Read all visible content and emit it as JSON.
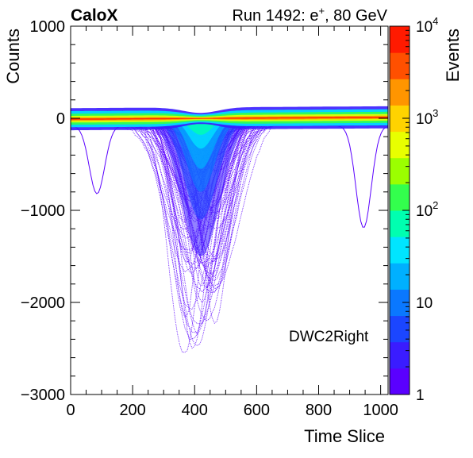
{
  "header": {
    "experiment": "CaloX",
    "run_prefix": "Run 1492: e",
    "run_sup": "+",
    "run_suffix": ", 80 GeV"
  },
  "chart_data": {
    "type": "heatmap",
    "xlabel": "Time Slice",
    "ylabel": "Counts",
    "zlabel": "Events",
    "xlim": [
      0,
      1024
    ],
    "ylim": [
      -3000,
      1000
    ],
    "zlim": [
      1,
      10000
    ],
    "zscale": "log",
    "x_ticks": [
      0,
      200,
      400,
      600,
      800,
      1000
    ],
    "x_tick_labels": [
      "0",
      "200",
      "400",
      "600",
      "800",
      "1000"
    ],
    "y_ticks": [
      1000,
      0,
      -1000,
      -2000,
      -3000
    ],
    "y_tick_labels": [
      "1000",
      "0",
      "−1000",
      "−2000",
      "−3000"
    ],
    "z_ticks": [
      {
        "value": 10000,
        "base": "10",
        "exp": "4"
      },
      {
        "value": 1000,
        "base": "10",
        "exp": "3"
      },
      {
        "value": 100,
        "base": "10",
        "exp": "2"
      },
      {
        "value": 10,
        "base": "10",
        "exp": ""
      },
      {
        "value": 1,
        "base": "1",
        "exp": ""
      }
    ],
    "annotation": "DWC2Right",
    "baseline_counts": 0,
    "band_halfwidth_counts": 80,
    "pulse": {
      "center_time": 420,
      "deep_start_time": 290,
      "deep_end_time": 460,
      "minimum_counts": -2680
    },
    "isolated_dips": [
      {
        "time": 85,
        "counts": -820
      },
      {
        "time": 945,
        "counts": -1190
      }
    ],
    "palette": [
      "#5a00ff",
      "#3a1cff",
      "#1b46ff",
      "#0a78ff",
      "#00b0ff",
      "#00e5ff",
      "#00ffb0",
      "#33ff4d",
      "#9bff00",
      "#e8ff00",
      "#ffd300",
      "#ff9500",
      "#ff5000",
      "#ff1a00"
    ]
  }
}
